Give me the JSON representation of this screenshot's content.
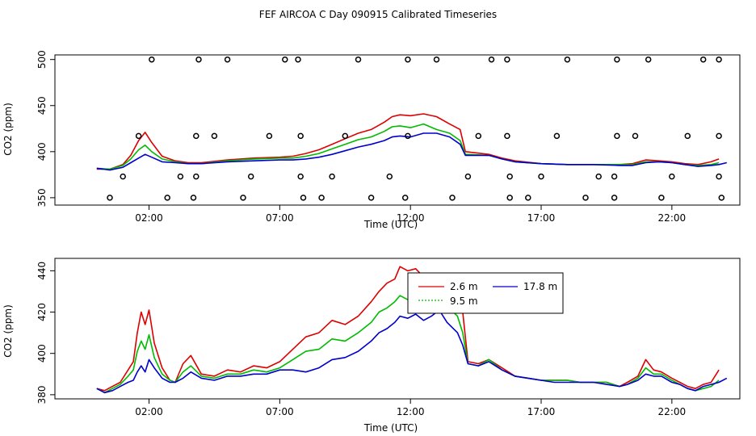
{
  "title": "FEF AIRCOA C  Day 090915  Calibrated Timeseries",
  "colors": {
    "s26": "#dd0000",
    "s95": "#00bb00",
    "s178": "#0000cc",
    "axis": "#000000"
  },
  "chart_data": [
    {
      "type": "line",
      "panel": "top",
      "xlabel": "Time (UTC)",
      "ylabel": "CO2 (ppm)",
      "xlim": [
        -1.6,
        24.6
      ],
      "ylim": [
        342,
        505
      ],
      "xticks": [
        2,
        7,
        12,
        17,
        22
      ],
      "xtick_labels": [
        "02:00",
        "07:00",
        "12:00",
        "17:00",
        "22:00"
      ],
      "yticks": [
        350,
        400,
        450,
        500
      ],
      "ytick_labels": [
        "350",
        "400",
        "450",
        "500"
      ],
      "markers": {
        "style": "open-circle",
        "points": [
          [
            2.1,
            500
          ],
          [
            3.9,
            500
          ],
          [
            5.0,
            500
          ],
          [
            7.2,
            500
          ],
          [
            7.7,
            500
          ],
          [
            10.0,
            500
          ],
          [
            11.9,
            500
          ],
          [
            13.0,
            500
          ],
          [
            15.1,
            500
          ],
          [
            15.7,
            500
          ],
          [
            18.0,
            500
          ],
          [
            19.9,
            500
          ],
          [
            21.1,
            500
          ],
          [
            23.2,
            500
          ],
          [
            23.8,
            500
          ],
          [
            1.6,
            417
          ],
          [
            3.8,
            417
          ],
          [
            4.5,
            417
          ],
          [
            6.6,
            417
          ],
          [
            7.8,
            417
          ],
          [
            9.5,
            417
          ],
          [
            11.9,
            417
          ],
          [
            14.6,
            417
          ],
          [
            15.7,
            417
          ],
          [
            17.6,
            417
          ],
          [
            19.9,
            417
          ],
          [
            20.6,
            417
          ],
          [
            22.6,
            417
          ],
          [
            23.8,
            417
          ],
          [
            1.0,
            373
          ],
          [
            3.2,
            373
          ],
          [
            3.8,
            373
          ],
          [
            5.9,
            373
          ],
          [
            7.8,
            373
          ],
          [
            9.0,
            373
          ],
          [
            11.2,
            373
          ],
          [
            14.2,
            373
          ],
          [
            15.8,
            373
          ],
          [
            17.0,
            373
          ],
          [
            19.2,
            373
          ],
          [
            19.8,
            373
          ],
          [
            22.0,
            373
          ],
          [
            23.8,
            373
          ],
          [
            0.5,
            350
          ],
          [
            2.7,
            350
          ],
          [
            3.7,
            350
          ],
          [
            5.6,
            350
          ],
          [
            7.9,
            350
          ],
          [
            8.6,
            350
          ],
          [
            10.5,
            350
          ],
          [
            11.8,
            350
          ],
          [
            13.6,
            350
          ],
          [
            15.8,
            350
          ],
          [
            16.5,
            350
          ],
          [
            18.7,
            350
          ],
          [
            19.8,
            350
          ],
          [
            21.6,
            350
          ],
          [
            23.9,
            350
          ]
        ]
      },
      "series": [
        {
          "name": "2.6 m",
          "color": "#dd0000",
          "x": [
            0,
            0.5,
            1,
            1.3,
            1.6,
            1.85,
            2.1,
            2.5,
            3,
            3.5,
            4,
            5,
            6,
            7,
            7.5,
            8,
            8.5,
            9,
            9.5,
            10,
            10.5,
            11,
            11.3,
            11.6,
            12,
            12.5,
            13,
            13.5,
            13.9,
            14.1,
            15,
            15.5,
            16,
            17,
            18,
            19,
            20,
            20.5,
            21,
            21.5,
            22,
            22.5,
            23,
            23.5,
            23.8
          ],
          "y": [
            381,
            381,
            386,
            396,
            412,
            421,
            410,
            395,
            390,
            388,
            388,
            391,
            393,
            394,
            395,
            398,
            402,
            408,
            414,
            420,
            424,
            432,
            438,
            440,
            439,
            441,
            438,
            430,
            424,
            400,
            397,
            393,
            390,
            387,
            386,
            386,
            386,
            387,
            391,
            390,
            389,
            387,
            386,
            389,
            392
          ]
        },
        {
          "name": "9.5 m",
          "color": "#00bb00",
          "x": [
            0,
            0.5,
            1,
            1.3,
            1.6,
            1.85,
            2.1,
            2.5,
            3,
            3.5,
            4,
            5,
            6,
            7,
            7.5,
            8,
            8.5,
            9,
            9.5,
            10,
            10.5,
            11,
            11.3,
            11.6,
            12,
            12.5,
            13,
            13.5,
            13.9,
            14.1,
            15,
            15.5,
            16,
            17,
            18,
            19,
            20,
            20.5,
            21,
            21.5,
            22,
            22.5,
            23,
            23.5,
            23.8
          ],
          "y": [
            382,
            381,
            385,
            392,
            402,
            407,
            400,
            392,
            389,
            387,
            387,
            390,
            392,
            393,
            393,
            395,
            398,
            403,
            408,
            413,
            416,
            422,
            427,
            428,
            426,
            430,
            424,
            420,
            412,
            397,
            396,
            392,
            389,
            387,
            386,
            386,
            386,
            386,
            389,
            389,
            388,
            386,
            385,
            386,
            388
          ]
        },
        {
          "name": "17.8 m",
          "color": "#0000cc",
          "x": [
            0,
            0.5,
            1,
            1.3,
            1.6,
            1.85,
            2.1,
            2.5,
            3,
            3.5,
            4,
            5,
            6,
            7,
            7.5,
            8,
            8.5,
            9,
            9.5,
            10,
            10.5,
            11,
            11.3,
            11.6,
            12,
            12.5,
            13,
            13.5,
            13.9,
            14.1,
            15,
            15.5,
            16,
            17,
            18,
            19,
            20,
            20.5,
            21,
            21.5,
            22,
            22.5,
            23,
            23.5,
            23.8,
            24.1
          ],
          "y": [
            382,
            380,
            383,
            388,
            393,
            397,
            394,
            389,
            388,
            387,
            387,
            389,
            390,
            391,
            391,
            392,
            394,
            397,
            401,
            405,
            408,
            412,
            416,
            417,
            416,
            420,
            420,
            416,
            408,
            396,
            396,
            392,
            389,
            387,
            386,
            386,
            385,
            385,
            388,
            389,
            388,
            386,
            384,
            385,
            386,
            388
          ]
        }
      ]
    },
    {
      "type": "line",
      "panel": "bottom",
      "xlabel": "Time (UTC)",
      "ylabel": "CO2 (ppm)",
      "xlim": [
        -1.6,
        24.6
      ],
      "ylim": [
        378,
        446
      ],
      "xticks": [
        2,
        7,
        12,
        17,
        22
      ],
      "xtick_labels": [
        "02:00",
        "07:00",
        "12:00",
        "17:00",
        "22:00"
      ],
      "yticks": [
        380,
        400,
        420,
        440
      ],
      "ytick_labels": [
        "380",
        "400",
        "420",
        "440"
      ],
      "legend": {
        "placement": "top-center"
      },
      "series": [
        {
          "name": "2.6 m",
          "color": "#dd0000",
          "x": [
            0,
            0.3,
            0.6,
            0.9,
            1.2,
            1.4,
            1.55,
            1.7,
            1.85,
            2.0,
            2.2,
            2.5,
            2.8,
            3.0,
            3.3,
            3.6,
            4.0,
            4.5,
            5.0,
            5.5,
            6.0,
            6.5,
            7.0,
            7.5,
            8.0,
            8.5,
            9.0,
            9.5,
            10.0,
            10.5,
            10.8,
            11.1,
            11.4,
            11.6,
            11.9,
            12.2,
            12.5,
            12.8,
            13.1,
            13.4,
            13.8,
            14.0,
            14.2,
            14.6,
            15.0,
            15.5,
            16.0,
            16.5,
            17.0,
            17.5,
            18.0,
            18.5,
            19.0,
            19.5,
            20.0,
            20.3,
            20.7,
            21.0,
            21.3,
            21.6,
            22.0,
            22.3,
            22.6,
            22.9,
            23.2,
            23.5,
            23.8
          ],
          "y": [
            383,
            382,
            384,
            386,
            392,
            396,
            410,
            420,
            414,
            421,
            405,
            393,
            387,
            386,
            395,
            399,
            390,
            389,
            392,
            391,
            394,
            393,
            396,
            402,
            408,
            410,
            416,
            414,
            418,
            425,
            430,
            434,
            436,
            442,
            440,
            441,
            437,
            436,
            430,
            428,
            424,
            420,
            396,
            395,
            397,
            393,
            389,
            388,
            387,
            387,
            387,
            386,
            386,
            386,
            384,
            386,
            389,
            397,
            392,
            391,
            388,
            386,
            384,
            383,
            385,
            386,
            392
          ]
        },
        {
          "name": "9.5 m",
          "color": "#00bb00",
          "x": [
            0,
            0.3,
            0.6,
            0.9,
            1.2,
            1.4,
            1.55,
            1.7,
            1.85,
            2.0,
            2.2,
            2.5,
            2.8,
            3.0,
            3.3,
            3.6,
            4.0,
            4.5,
            5.0,
            5.5,
            6.0,
            6.5,
            7.0,
            7.5,
            8.0,
            8.5,
            9.0,
            9.5,
            10.0,
            10.5,
            10.8,
            11.1,
            11.4,
            11.6,
            11.9,
            12.2,
            12.5,
            12.8,
            13.1,
            13.4,
            13.8,
            14.0,
            14.2,
            14.6,
            15.0,
            15.5,
            16.0,
            16.5,
            17.0,
            17.5,
            18.0,
            18.5,
            19.0,
            19.5,
            20.0,
            20.3,
            20.7,
            21.0,
            21.3,
            21.6,
            22.0,
            22.3,
            22.6,
            22.9,
            23.2,
            23.5,
            23.8
          ],
          "y": [
            383,
            381,
            383,
            385,
            389,
            392,
            401,
            406,
            402,
            409,
            398,
            390,
            387,
            386,
            391,
            394,
            389,
            388,
            390,
            390,
            392,
            391,
            393,
            397,
            401,
            402,
            407,
            406,
            410,
            415,
            420,
            422,
            425,
            428,
            426,
            428,
            425,
            426,
            432,
            423,
            418,
            410,
            395,
            394,
            397,
            392,
            389,
            388,
            387,
            387,
            387,
            386,
            386,
            386,
            384,
            385,
            388,
            393,
            390,
            390,
            387,
            385,
            383,
            382,
            383,
            384,
            387
          ]
        },
        {
          "name": "17.8 m",
          "color": "#0000cc",
          "x": [
            0,
            0.3,
            0.6,
            0.9,
            1.2,
            1.4,
            1.55,
            1.7,
            1.85,
            2.0,
            2.2,
            2.5,
            2.8,
            3.0,
            3.3,
            3.6,
            4.0,
            4.5,
            5.0,
            5.5,
            6.0,
            6.5,
            7.0,
            7.5,
            8.0,
            8.5,
            9.0,
            9.5,
            10.0,
            10.5,
            10.8,
            11.1,
            11.4,
            11.6,
            11.9,
            12.2,
            12.5,
            12.8,
            13.1,
            13.4,
            13.8,
            14.0,
            14.2,
            14.6,
            15.0,
            15.5,
            16.0,
            16.5,
            17.0,
            17.5,
            18.0,
            18.5,
            19.0,
            19.5,
            20.0,
            20.3,
            20.7,
            21.0,
            21.3,
            21.6,
            22.0,
            22.3,
            22.6,
            22.9,
            23.2,
            23.5,
            23.8,
            24.1
          ],
          "y": [
            383,
            381,
            382,
            384,
            386,
            387,
            391,
            394,
            391,
            397,
            393,
            388,
            386,
            386,
            388,
            391,
            388,
            387,
            389,
            389,
            390,
            390,
            392,
            392,
            391,
            393,
            397,
            398,
            401,
            406,
            410,
            412,
            415,
            418,
            417,
            419,
            416,
            418,
            421,
            415,
            410,
            404,
            395,
            394,
            396,
            392,
            389,
            388,
            387,
            386,
            386,
            386,
            386,
            385,
            384,
            385,
            387,
            390,
            389,
            389,
            386,
            385,
            383,
            382,
            384,
            385,
            386,
            388
          ]
        }
      ]
    }
  ]
}
